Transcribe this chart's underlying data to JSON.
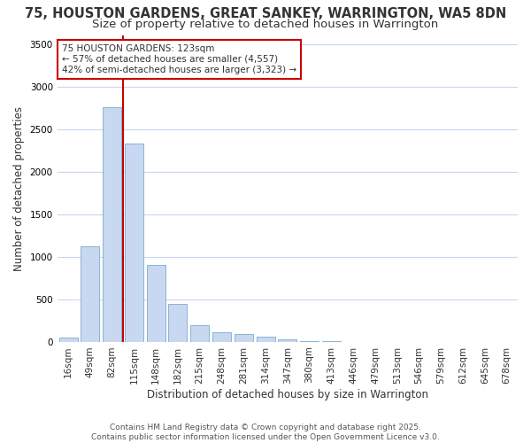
{
  "title_line1": "75, HOUSTON GARDENS, GREAT SANKEY, WARRINGTON, WA5 8DN",
  "title_line2": "Size of property relative to detached houses in Warrington",
  "xlabel": "Distribution of detached houses by size in Warrington",
  "ylabel": "Number of detached properties",
  "categories": [
    "16sqm",
    "49sqm",
    "82sqm",
    "115sqm",
    "148sqm",
    "182sqm",
    "215sqm",
    "248sqm",
    "281sqm",
    "314sqm",
    "347sqm",
    "380sqm",
    "413sqm",
    "446sqm",
    "479sqm",
    "513sqm",
    "546sqm",
    "579sqm",
    "612sqm",
    "645sqm",
    "678sqm"
  ],
  "values": [
    50,
    1120,
    2760,
    2330,
    900,
    440,
    195,
    105,
    90,
    55,
    30,
    10,
    5,
    0,
    0,
    0,
    0,
    0,
    0,
    0,
    0
  ],
  "bar_color": "#c8d8f0",
  "bar_edge_color": "#7aaad0",
  "vline_x_index": 3,
  "vline_color": "#cc0000",
  "annotation_text": "75 HOUSTON GARDENS: 123sqm\n← 57% of detached houses are smaller (4,557)\n42% of semi-detached houses are larger (3,323) →",
  "annotation_box_color": "#ffffff",
  "annotation_box_edge": "#cc0000",
  "ylim": [
    0,
    3600
  ],
  "yticks": [
    0,
    500,
    1000,
    1500,
    2000,
    2500,
    3000,
    3500
  ],
  "background_color": "#ffffff",
  "plot_bg_color": "#ffffff",
  "grid_color": "#c8d8f0",
  "footer_line1": "Contains HM Land Registry data © Crown copyright and database right 2025.",
  "footer_line2": "Contains public sector information licensed under the Open Government Licence v3.0.",
  "title_fontsize": 10.5,
  "subtitle_fontsize": 9.5,
  "axis_label_fontsize": 8.5,
  "tick_fontsize": 7.5,
  "annotation_fontsize": 7.5,
  "footer_fontsize": 6.5
}
